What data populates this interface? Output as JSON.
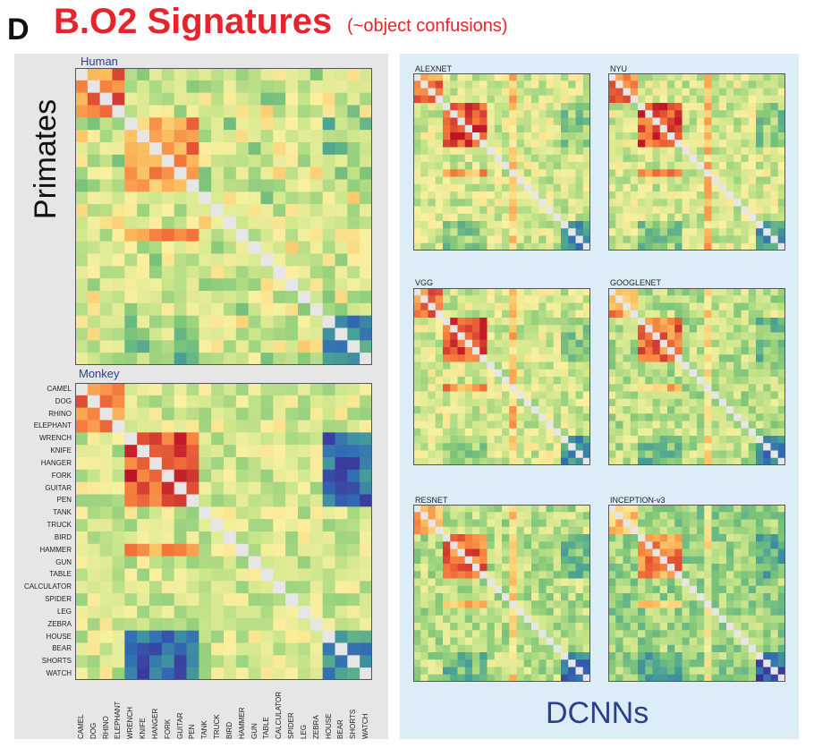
{
  "panel_letter": "D",
  "title": "B.O2 Signatures",
  "subtitle": "(~object confusions)",
  "primates_label": "Primates",
  "dcnns_label": "DCNNs",
  "objects": [
    "CAMEL",
    "DOG",
    "RHINO",
    "ELEPHANT",
    "WRENCH",
    "KNIFE",
    "HANGER",
    "FORK",
    "GUITAR",
    "PEN",
    "TANK",
    "TRUCK",
    "BIRD",
    "HAMMER",
    "GUN",
    "TABLE",
    "CALCULATOR",
    "SPIDER",
    "LEG",
    "ZEBRA",
    "HOUSE",
    "BEAR",
    "SHORTS",
    "WATCH"
  ],
  "colors": {
    "high": "#c8102e",
    "low": "#3b1d8f",
    "diagonal": "#e6e6e6",
    "title": "#e5242b",
    "group_label": "#2a3f8f"
  },
  "chart_data": [
    {
      "type": "heatmap",
      "title": "Human",
      "group": "Primates",
      "n": 24,
      "seed": 11,
      "style": "human"
    },
    {
      "type": "heatmap",
      "title": "Monkey",
      "group": "Primates",
      "n": 24,
      "seed": 23,
      "style": "monkey"
    },
    {
      "type": "heatmap",
      "title": "ALEXNET",
      "group": "DCNNs",
      "n": 24,
      "seed": 31,
      "style": "dcnn"
    },
    {
      "type": "heatmap",
      "title": "NYU",
      "group": "DCNNs",
      "n": 24,
      "seed": 37,
      "style": "dcnn"
    },
    {
      "type": "heatmap",
      "title": "VGG",
      "group": "DCNNs",
      "n": 24,
      "seed": 41,
      "style": "dcnn"
    },
    {
      "type": "heatmap",
      "title": "GOOGLENET",
      "group": "DCNNs",
      "n": 24,
      "seed": 43,
      "style": "dcnn2"
    },
    {
      "type": "heatmap",
      "title": "RESNET",
      "group": "DCNNs",
      "n": 24,
      "seed": 47,
      "style": "dcnn2"
    },
    {
      "type": "heatmap",
      "title": "INCEPTION-v3",
      "group": "DCNNs",
      "n": 24,
      "seed": 53,
      "style": "dcnn3"
    }
  ]
}
